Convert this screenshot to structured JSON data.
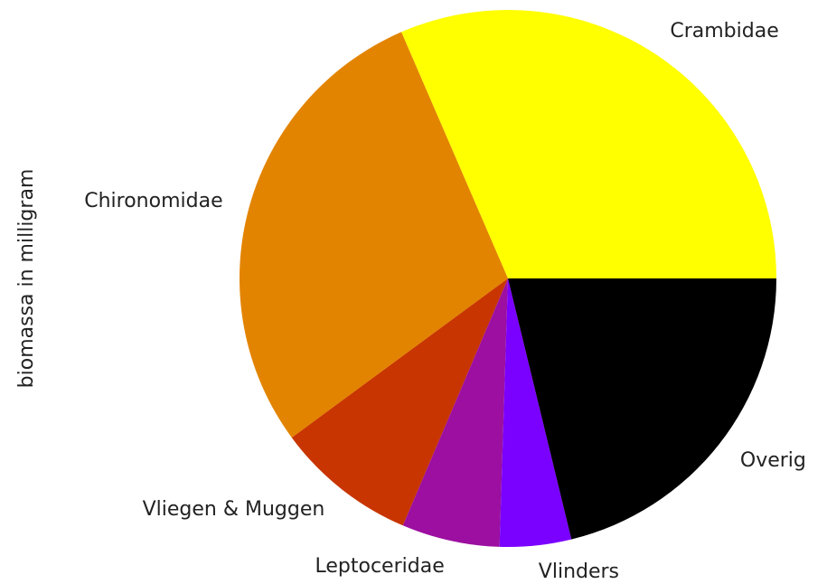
{
  "chart_data": {
    "type": "pie",
    "ylabel": "biomassa in milligram",
    "categories": [
      "Crambidae",
      "Chironomidae",
      "Vliegen & Muggen",
      "Leptoceridae",
      "Vlinders",
      "Overig"
    ],
    "values": [
      31.5,
      28.6,
      8.5,
      5.9,
      4.3,
      21.2
    ],
    "colors": [
      "#ffff00",
      "#e38400",
      "#c83500",
      "#9c0fa0",
      "#7a00ff",
      "#000000"
    ]
  }
}
